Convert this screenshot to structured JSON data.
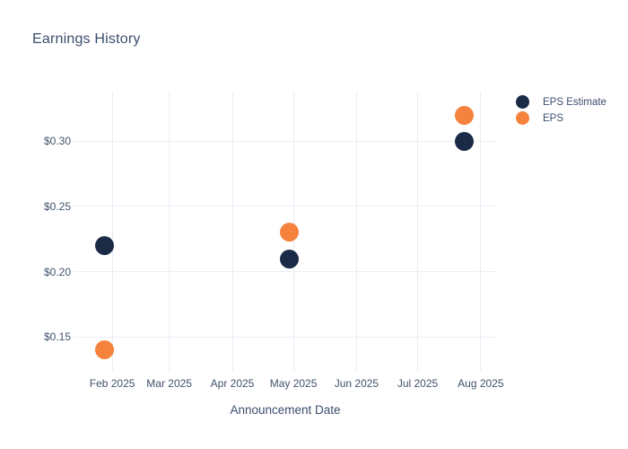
{
  "chart_data": {
    "type": "scatter",
    "title": "Earnings History",
    "xlabel": "Announcement Date",
    "ylabel": "",
    "grid": true,
    "legend_position": "top-right-outside",
    "background_color": "#ffffff",
    "grid_color": "#e9eef6",
    "text_color": "#42526b",
    "title_color": "#3a4c6e",
    "x_range_dates": [
      "2025-01-13",
      "2025-08-09"
    ],
    "y_range": [
      0.124,
      0.338
    ],
    "x_ticks": [
      {
        "label": "Feb 2025",
        "date": "2025-02-01"
      },
      {
        "label": "Mar 2025",
        "date": "2025-03-01"
      },
      {
        "label": "Apr 2025",
        "date": "2025-04-01"
      },
      {
        "label": "May 2025",
        "date": "2025-05-01"
      },
      {
        "label": "Jun 2025",
        "date": "2025-06-01"
      },
      {
        "label": "Jul 2025",
        "date": "2025-07-01"
      },
      {
        "label": "Aug 2025",
        "date": "2025-08-01"
      }
    ],
    "y_ticks": [
      {
        "label": "$0.15",
        "value": 0.15
      },
      {
        "label": "$0.20",
        "value": 0.2
      },
      {
        "label": "$0.25",
        "value": 0.25
      },
      {
        "label": "$0.30",
        "value": 0.3
      }
    ],
    "series": [
      {
        "name": "EPS Estimate",
        "color": "#1b2a46",
        "points": [
          {
            "date": "2025-01-28",
            "value": 0.22
          },
          {
            "date": "2025-04-29",
            "value": 0.21
          },
          {
            "date": "2025-07-24",
            "value": 0.3
          }
        ]
      },
      {
        "name": "EPS",
        "color": "#f5833d",
        "points": [
          {
            "date": "2025-01-28",
            "value": 0.14
          },
          {
            "date": "2025-04-29",
            "value": 0.23
          },
          {
            "date": "2025-07-24",
            "value": 0.32
          }
        ]
      }
    ]
  }
}
